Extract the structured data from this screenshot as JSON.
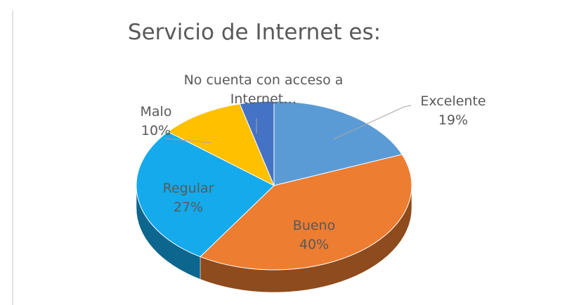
{
  "chart_data": {
    "type": "pie",
    "title": "Servicio de Internet es:",
    "categories": [
      "Excelente",
      "Bueno",
      "Regular",
      "Malo",
      "No cuenta con acceso a Internet…"
    ],
    "values": [
      19,
      40,
      27,
      10,
      4
    ],
    "value_labels": [
      "19%",
      "40%",
      "27%",
      "10%",
      null
    ],
    "colors": [
      "#5b9bd5",
      "#ed7d31",
      "#14aaeb",
      "#ffc000",
      "#4472c4"
    ]
  }
}
